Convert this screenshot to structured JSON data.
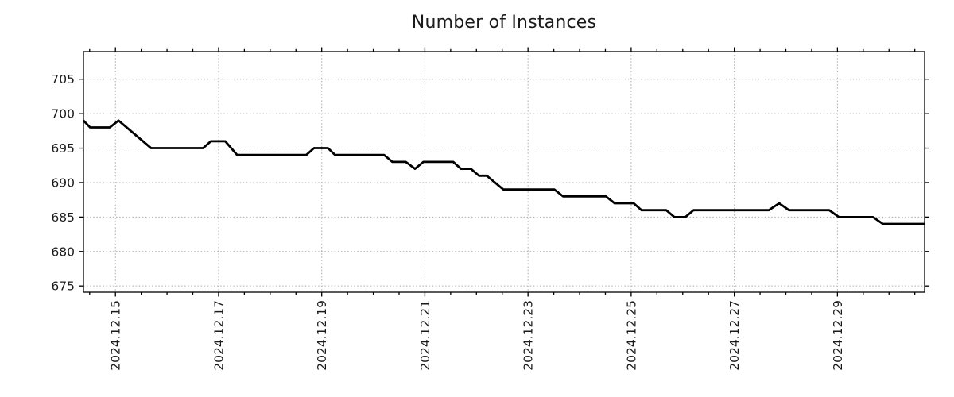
{
  "title": "Number of Instances",
  "chart_data": {
    "type": "line",
    "title": "Number of Instances",
    "x_axis": {
      "unit": "days (1.0 = 2024.12.15, one unit per day)",
      "range": [
        0.38,
        16.69
      ],
      "major_ticks": [
        1,
        3,
        5,
        7,
        9,
        11,
        13,
        15
      ],
      "major_labels": [
        "2024.12.15",
        "2024.12.17",
        "2024.12.19",
        "2024.12.21",
        "2024.12.23",
        "2024.12.25",
        "2024.12.27",
        "2024.12.29"
      ],
      "minor_tick_step": 0.5,
      "label_rotation_deg": -90
    },
    "y_axis": {
      "range": [
        674.1,
        709.0
      ],
      "ticks": [
        675,
        680,
        685,
        690,
        695,
        700,
        705
      ],
      "tick_labels": [
        "675",
        "680",
        "685",
        "690",
        "695",
        "700",
        "705"
      ]
    },
    "grid": {
      "show": true,
      "style": "dotted",
      "color": "#aaaaaa"
    },
    "legend": "none",
    "series": [
      {
        "name": "instances",
        "color": "#000000",
        "line_width": 2.8,
        "points": [
          [
            0.38,
            699
          ],
          [
            0.51,
            698
          ],
          [
            0.89,
            698
          ],
          [
            1.06,
            699
          ],
          [
            1.69,
            695
          ],
          [
            2.7,
            695
          ],
          [
            2.85,
            696
          ],
          [
            3.13,
            696
          ],
          [
            3.36,
            694
          ],
          [
            4.7,
            694
          ],
          [
            4.85,
            695
          ],
          [
            5.12,
            695
          ],
          [
            5.26,
            694
          ],
          [
            6.21,
            694
          ],
          [
            6.37,
            693
          ],
          [
            6.63,
            693
          ],
          [
            6.81,
            692
          ],
          [
            6.97,
            693
          ],
          [
            7.55,
            693
          ],
          [
            7.7,
            692
          ],
          [
            7.89,
            692
          ],
          [
            8.05,
            691
          ],
          [
            8.2,
            691
          ],
          [
            8.52,
            689
          ],
          [
            9.51,
            689
          ],
          [
            9.68,
            688
          ],
          [
            10.51,
            688
          ],
          [
            10.68,
            687
          ],
          [
            11.05,
            687
          ],
          [
            11.2,
            686
          ],
          [
            11.68,
            686
          ],
          [
            11.84,
            685
          ],
          [
            12.05,
            685
          ],
          [
            12.21,
            686
          ],
          [
            13.67,
            686
          ],
          [
            13.87,
            687
          ],
          [
            14.06,
            686
          ],
          [
            14.84,
            686
          ],
          [
            15.03,
            685
          ],
          [
            15.69,
            685
          ],
          [
            15.88,
            684
          ],
          [
            16.69,
            684
          ]
        ]
      }
    ],
    "colors": {
      "background": "#ffffff",
      "axis": "#000000",
      "text": "#1a1a1a"
    }
  }
}
